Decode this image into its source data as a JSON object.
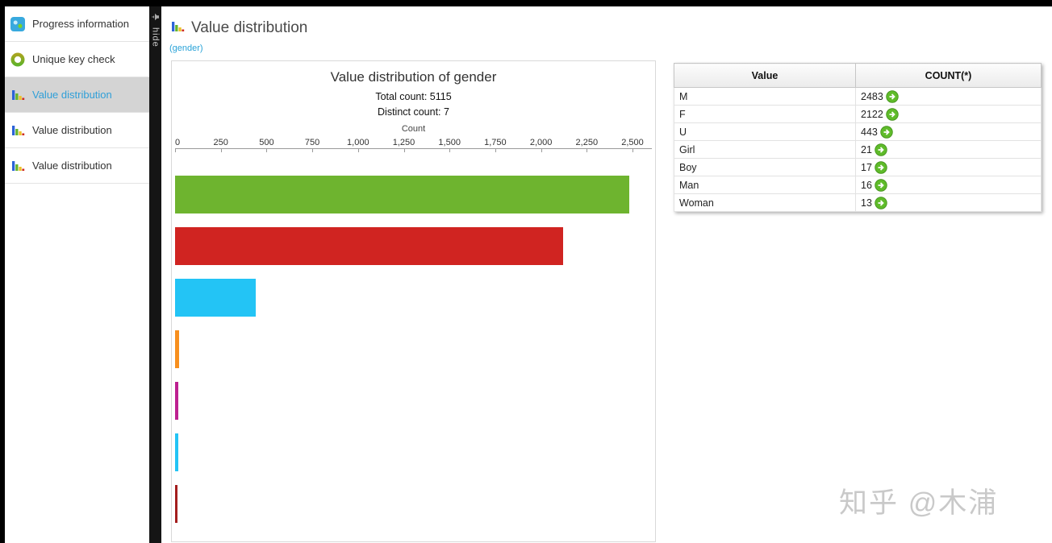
{
  "sidebar": {
    "items": [
      {
        "label": "Progress information",
        "selected": false
      },
      {
        "label": "Unique key check",
        "selected": false
      },
      {
        "label": "Value distribution",
        "selected": true
      },
      {
        "label": "Value distribution",
        "selected": false
      },
      {
        "label": "Value distribution",
        "selected": false
      }
    ],
    "hide_label": "hide"
  },
  "main": {
    "title": "Value distribution",
    "subtitle_link": "(gender)"
  },
  "chart_data": {
    "type": "bar",
    "orientation": "horizontal",
    "title": "Value distribution of gender",
    "total_count_label": "Total count: 5115",
    "distinct_count_label": "Distinct count: 7",
    "axis_label": "Count",
    "x_ticks": [
      "0",
      "250",
      "500",
      "750",
      "1,000",
      "1,250",
      "1,500",
      "1,750",
      "2,000",
      "2,250",
      "2,500"
    ],
    "xlim": [
      0,
      2500
    ],
    "categories": [
      "M",
      "F",
      "U",
      "Girl",
      "Boy",
      "Man",
      "Woman"
    ],
    "values": [
      2483,
      2122,
      443,
      21,
      17,
      16,
      13
    ],
    "colors": [
      "#6eb42f",
      "#d02421",
      "#23c4f5",
      "#f78f1e",
      "#bd2090",
      "#23c4f5",
      "#a31d1d"
    ],
    "legend": "none",
    "grid": false
  },
  "table": {
    "columns": [
      "Value",
      "COUNT(*)"
    ],
    "rows": [
      {
        "value": "M",
        "count": "2483"
      },
      {
        "value": "F",
        "count": "2122"
      },
      {
        "value": "U",
        "count": "443"
      },
      {
        "value": "Girl",
        "count": "21"
      },
      {
        "value": "Boy",
        "count": "17"
      },
      {
        "value": "Man",
        "count": "16"
      },
      {
        "value": "Woman",
        "count": "13"
      }
    ]
  },
  "watermark": "知乎 @木浦"
}
